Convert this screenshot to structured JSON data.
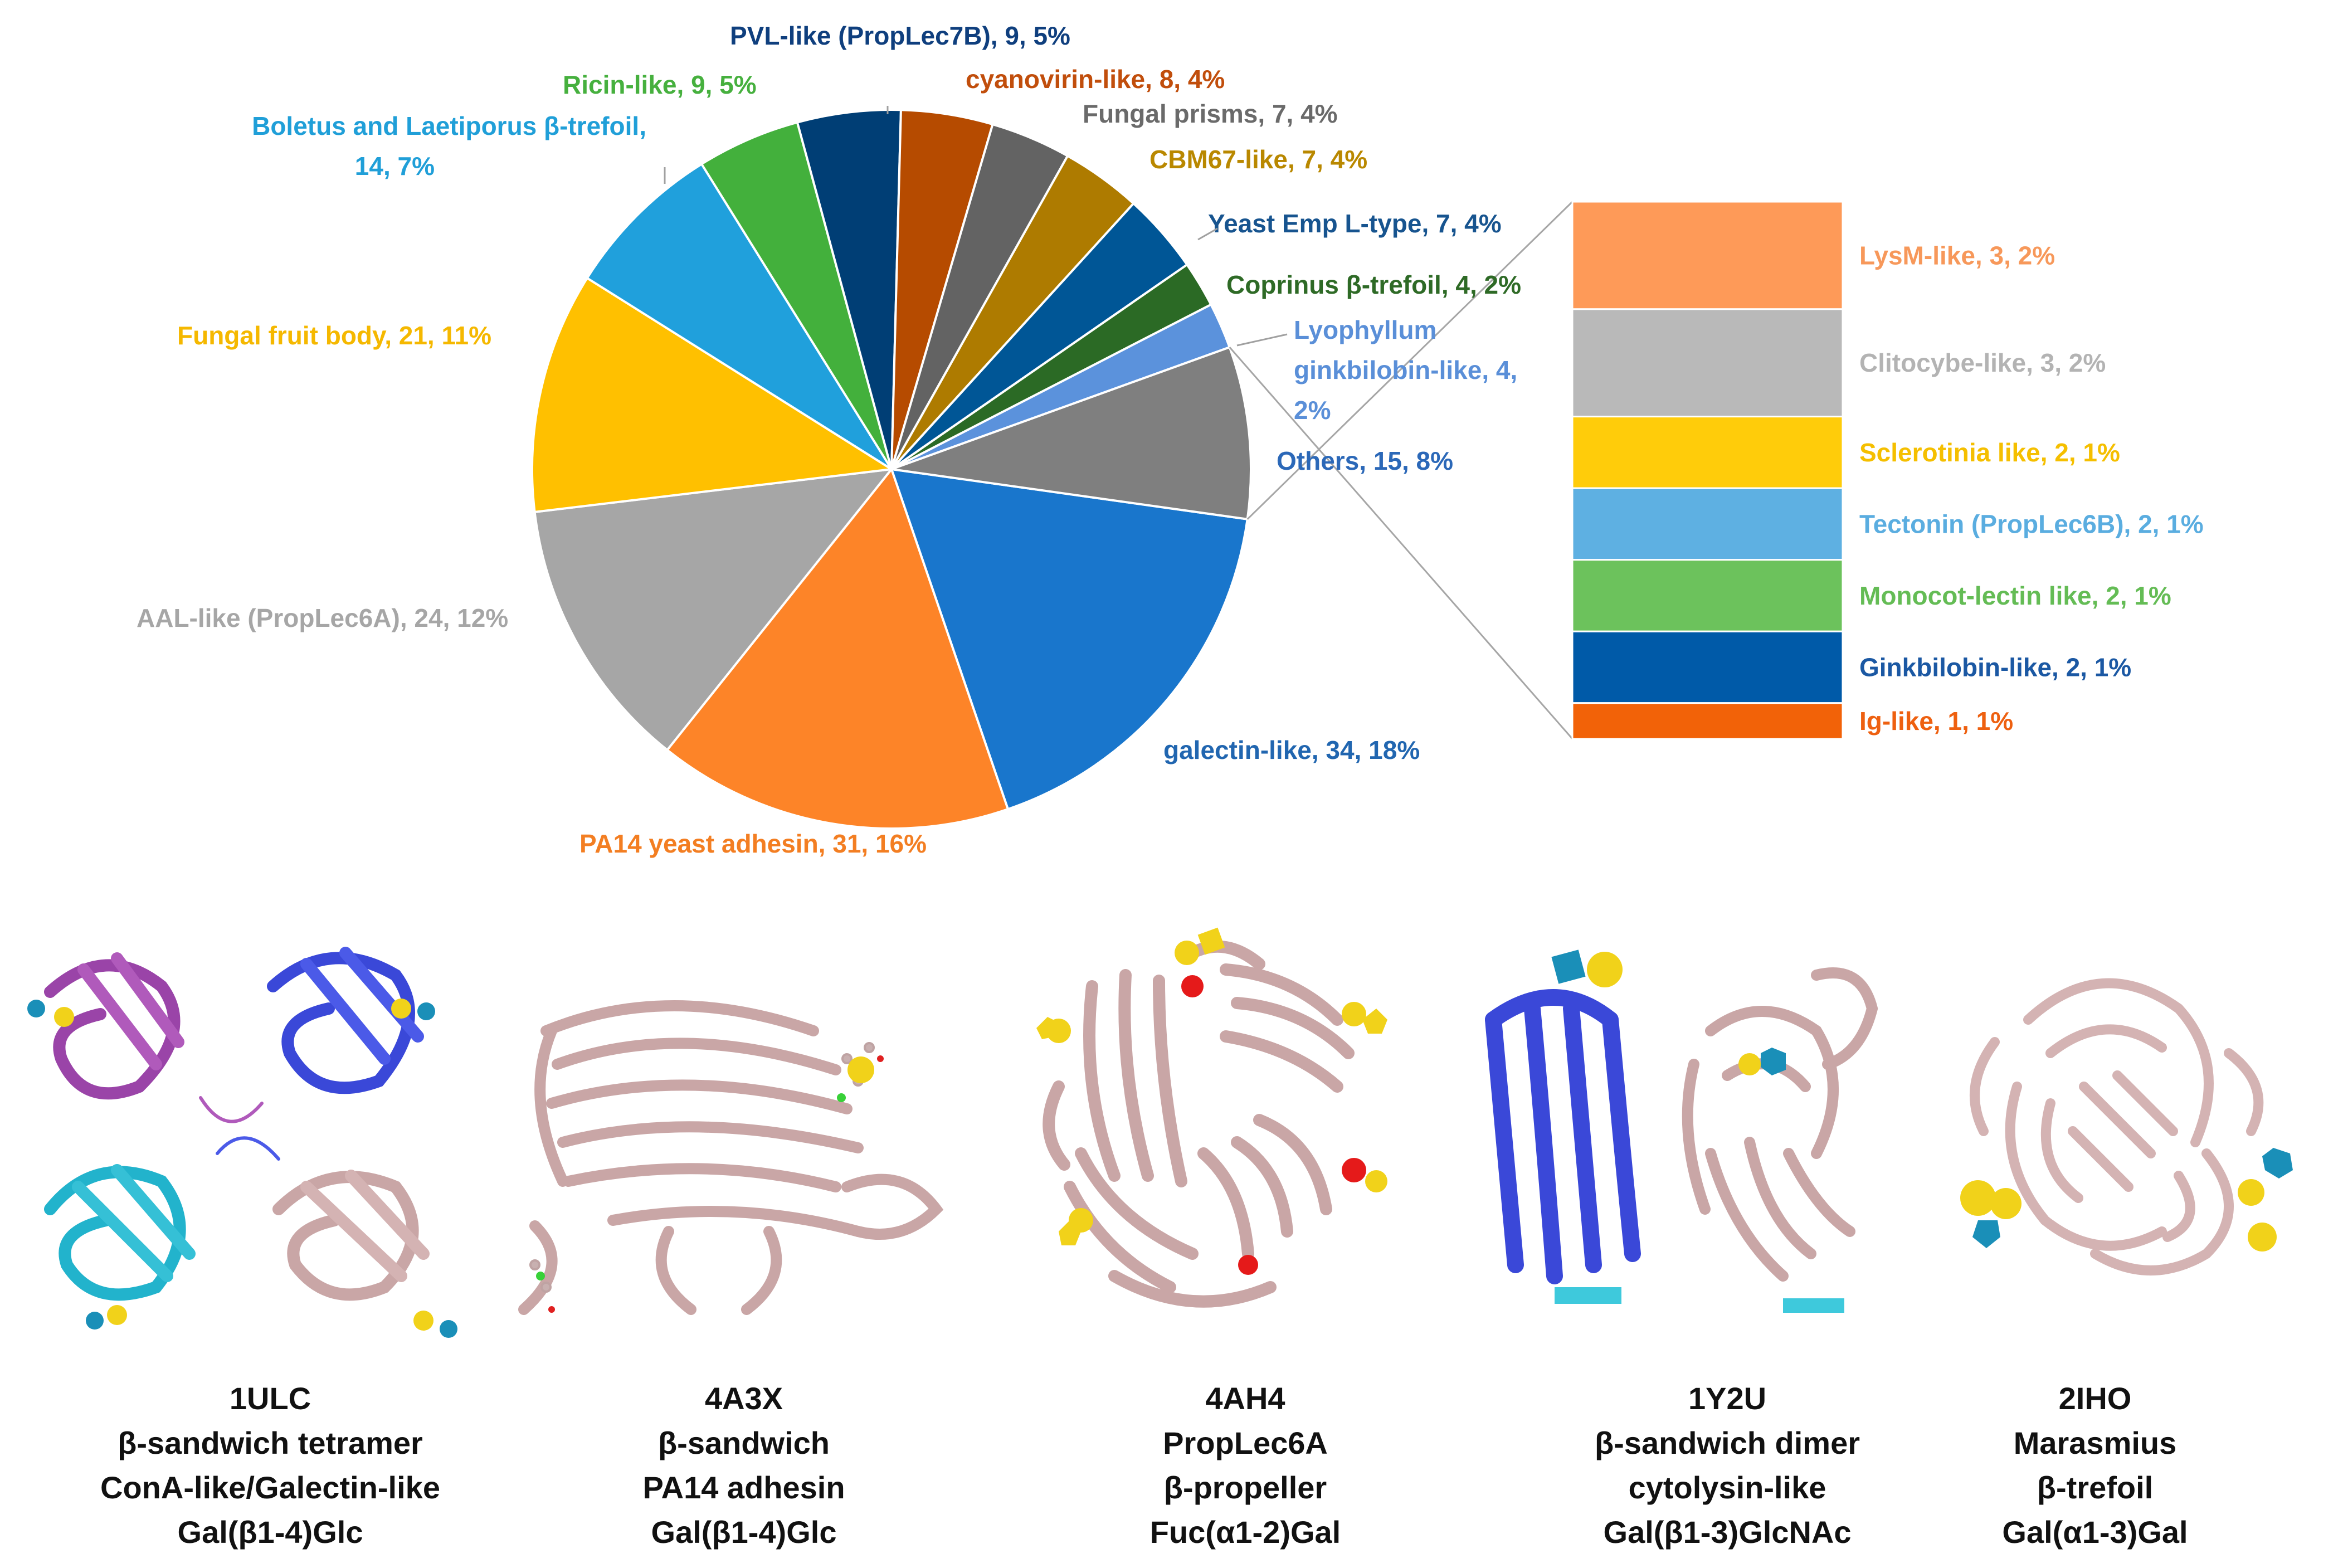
{
  "chart_data": {
    "type": "bar-of-pie",
    "slices": [
      {
        "label": "galectin-like, 34, 18%",
        "value": 34,
        "color": "#1976cc",
        "text_color": "#2166b0"
      },
      {
        "label": "PA14 yeast adhesin, 31, 16%",
        "value": 31,
        "color": "#fd8428",
        "text_color": "#f37e22"
      },
      {
        "label": "AAL-like (PropLec6A), 24, 12%",
        "value": 24,
        "color": "#a6a6a6",
        "text_color": "#a6a6a6"
      },
      {
        "label": "Fungal fruit body, 21, 11%",
        "value": 21,
        "color": "#ffc000",
        "text_color": "#f5b800"
      },
      {
        "label": "Boletus and Laetiporus β-trefoil,",
        "label2": "14, 7%",
        "value": 14,
        "color": "#20a0dc",
        "text_color": "#209fd8"
      },
      {
        "label": "Ricin-like, 9, 5%",
        "value": 9,
        "color": "#43b03c",
        "text_color": "#46b03e"
      },
      {
        "label": "PVL-like (PropLec7B), 9, 5%",
        "value": 9,
        "color": "#003e75",
        "text_color": "#0f3f7e"
      },
      {
        "label": "cyanovirin-like, 8, 4%",
        "value": 8,
        "color": "#b64b00",
        "text_color": "#c14e0c"
      },
      {
        "label": "Fungal prisms, 7, 4%",
        "value": 7,
        "color": "#636363",
        "text_color": "#6a6a6a"
      },
      {
        "label": "CBM67-like, 7, 4%",
        "value": 7,
        "color": "#ae7b00",
        "text_color": "#b98800"
      },
      {
        "label": "Yeast Emp L-type, 7, 4%",
        "value": 7,
        "color": "#005696",
        "text_color": "#17548f"
      },
      {
        "label": "Coprinus β-trefoil, 4, 2%",
        "value": 4,
        "color": "#2b6a25",
        "text_color": "#2e6a26"
      },
      {
        "label": "Lyophyllum",
        "label2": "ginkbilobin-like, 4,",
        "label3": "2%",
        "value": 4,
        "color": "#5b92dc",
        "text_color": "#5a8fd8"
      },
      {
        "label": "Others, 15, 8%",
        "value": 15,
        "color": "#7f7f7f",
        "text_color": "#2b68b8"
      }
    ],
    "others_breakdown": [
      {
        "label": "LysM-like, 3, 2%",
        "value": 3,
        "color": "#fe9a58",
        "text_color": "#f7985a"
      },
      {
        "label": "Clitocybe-like, 3, 2%",
        "value": 3,
        "color": "#b9b9b9",
        "text_color": "#b3b3b3"
      },
      {
        "label": "Sclerotinia like, 2, 1%",
        "value": 2,
        "color": "#ffcc0a",
        "text_color": "#f5bf00"
      },
      {
        "label": "Tectonin (PropLec6B), 2, 1%",
        "value": 2,
        "color": "#5eb0e2",
        "text_color": "#5aade0"
      },
      {
        "label": "Monocot-lectin like, 2, 1%",
        "value": 2,
        "color": "#6cc25c",
        "text_color": "#64bc55"
      },
      {
        "label": "Ginkbilobin-like, 2, 1%",
        "value": 2,
        "color": "#005aa8",
        "text_color": "#1b58a3"
      },
      {
        "label": "Ig-like, 1, 1%",
        "value": 1,
        "color": "#f26208",
        "text_color": "#ee6010"
      }
    ]
  },
  "structures": [
    {
      "pdb": "1ULC",
      "fold": "β-sandwich tetramer",
      "family": "ConA-like/Galectin-like",
      "ligand": "Gal(β1-4)Glc"
    },
    {
      "pdb": "4A3X",
      "fold": "β-sandwich",
      "family": "PA14 adhesin",
      "ligand": "Gal(β1-4)Glc"
    },
    {
      "pdb": "4AH4",
      "fold": "PropLec6A",
      "family": "β-propeller",
      "ligand": "Fuc(α1-2)Gal"
    },
    {
      "pdb": "1Y2U",
      "fold": "β-sandwich dimer",
      "family": "cytolysin-like",
      "ligand": "Gal(β1-3)GlcNAc"
    },
    {
      "pdb": "2IHO",
      "fold": "Marasmius",
      "family": "β-trefoil",
      "ligand": "Gal(α1-3)Gal"
    }
  ]
}
